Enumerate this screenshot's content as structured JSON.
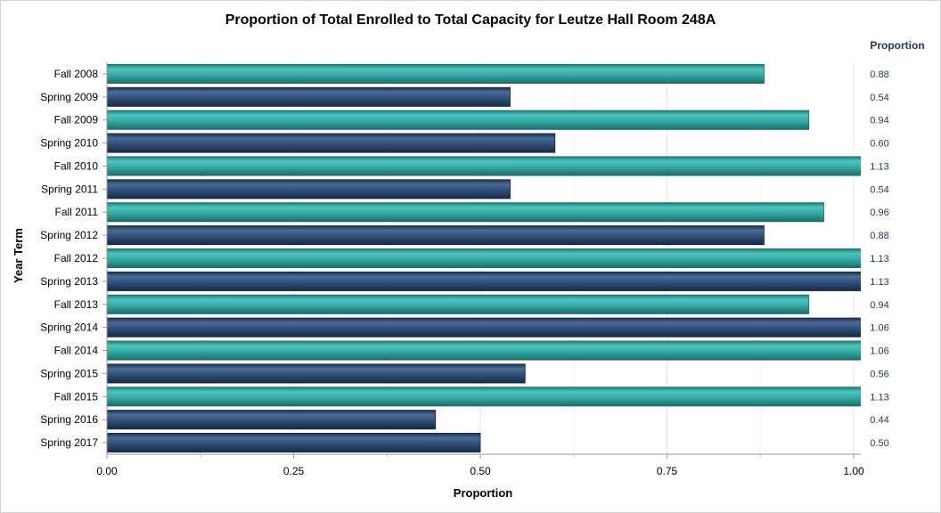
{
  "chart_data": {
    "type": "bar",
    "orientation": "horizontal",
    "title": "Proportion of Total Enrolled to Total Capacity for Leutze Hall Room 248A",
    "xlabel": "Proportion",
    "ylabel": "Year Term",
    "value_column_header": "Proportion",
    "xlim": [
      0,
      1.0
    ],
    "xticks": [
      "0.00",
      "0.25",
      "0.50",
      "0.75",
      "1.00"
    ],
    "grid": "vertical",
    "categories": [
      "Fall 2008",
      "Spring 2009",
      "Fall 2009",
      "Spring 2010",
      "Fall 2010",
      "Spring 2011",
      "Fall 2011",
      "Spring 2012",
      "Fall 2012",
      "Spring 2013",
      "Fall 2013",
      "Spring 2014",
      "Fall 2014",
      "Spring 2015",
      "Fall 2015",
      "Spring 2016",
      "Spring 2017"
    ],
    "values": [
      0.88,
      0.54,
      0.94,
      0.6,
      1.13,
      0.54,
      0.96,
      0.88,
      1.13,
      1.13,
      0.94,
      1.06,
      1.06,
      0.56,
      1.13,
      0.44,
      0.5
    ],
    "value_labels": [
      "0.88",
      "0.54",
      "0.94",
      "0.60",
      "1.13",
      "0.54",
      "0.96",
      "0.88",
      "1.13",
      "1.13",
      "0.94",
      "1.06",
      "1.06",
      "0.56",
      "1.13",
      "0.44",
      "0.50"
    ],
    "colors": {
      "fall": "#3aa9a4",
      "spring": "#2f4f74",
      "value_text": "#1f3a60"
    }
  }
}
